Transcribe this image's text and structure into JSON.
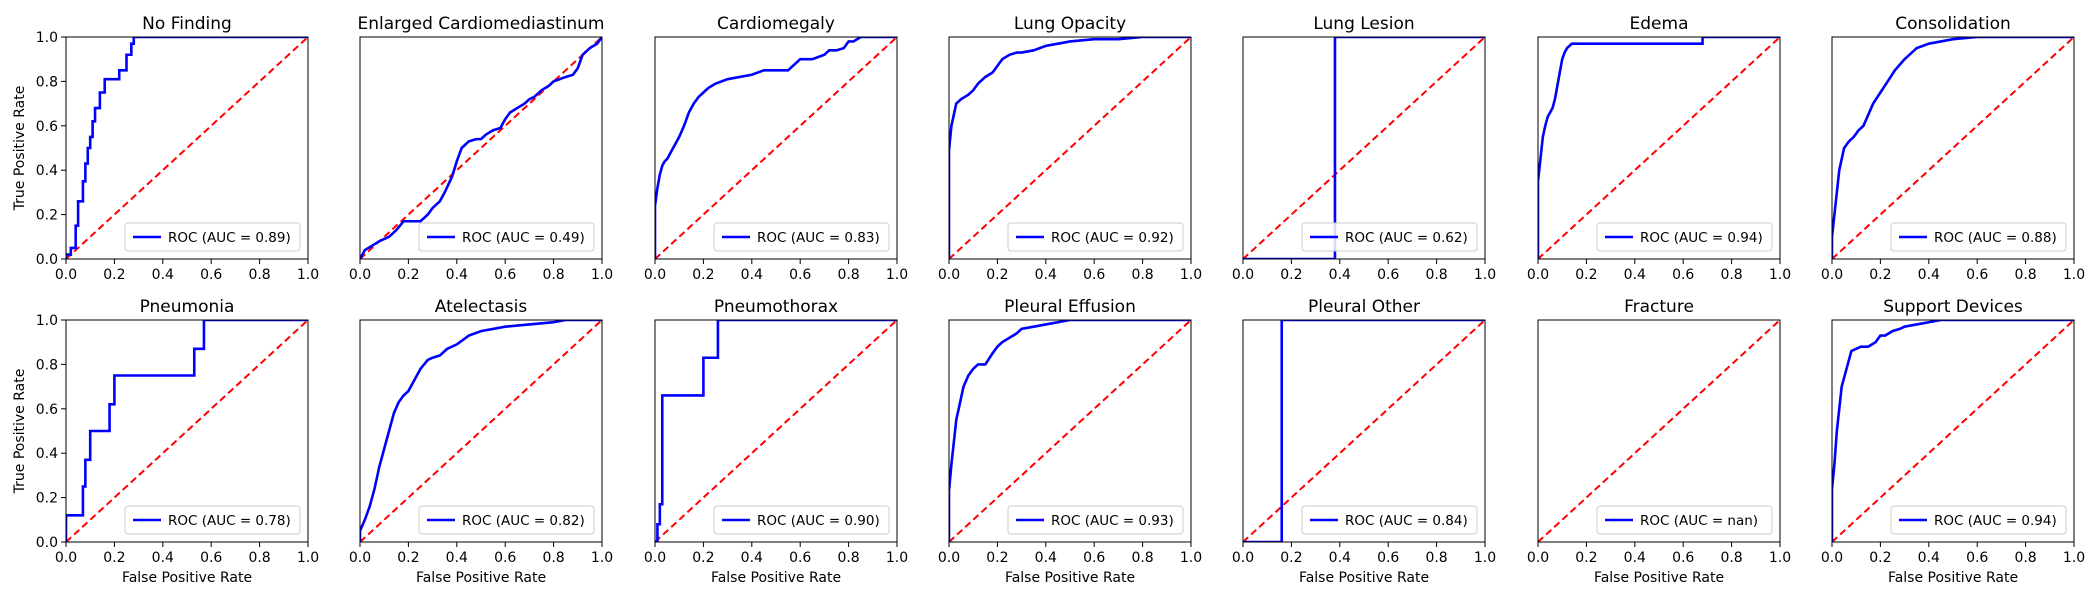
{
  "figure": {
    "xlabel": "False Positive Rate",
    "ylabel": "True Positive Rate",
    "tick_labels": [
      "0.0",
      "0.2",
      "0.4",
      "0.6",
      "0.8",
      "1.0"
    ],
    "roc_color": "#0000ff",
    "diagonal_color": "#ff0000"
  },
  "chart_data": [
    {
      "type": "line",
      "title": "No Finding",
      "legend": "ROC (AUC = 0.89)",
      "xlim": [
        0,
        1
      ],
      "ylim": [
        0,
        1
      ],
      "series": [
        {
          "name": "ROC (AUC = 0.89)",
          "x": [
            0,
            0,
            0.02,
            0.02,
            0.04,
            0.04,
            0.05,
            0.05,
            0.07,
            0.07,
            0.08,
            0.08,
            0.09,
            0.09,
            0.1,
            0.1,
            0.11,
            0.11,
            0.12,
            0.12,
            0.14,
            0.14,
            0.16,
            0.16,
            0.22,
            0.22,
            0.25,
            0.25,
            0.27,
            0.27,
            0.28,
            0.28,
            1
          ],
          "y": [
            0,
            0.02,
            0.02,
            0.05,
            0.05,
            0.15,
            0.15,
            0.26,
            0.26,
            0.35,
            0.35,
            0.43,
            0.43,
            0.5,
            0.5,
            0.55,
            0.55,
            0.62,
            0.62,
            0.68,
            0.68,
            0.75,
            0.75,
            0.81,
            0.81,
            0.85,
            0.85,
            0.92,
            0.92,
            0.97,
            0.97,
            1,
            1
          ]
        },
        {
          "name": "chance",
          "x": [
            0,
            1
          ],
          "y": [
            0,
            1
          ]
        }
      ]
    },
    {
      "type": "line",
      "title": "Enlarged Cardiomediastinum",
      "legend": "ROC (AUC = 0.49)",
      "xlim": [
        0,
        1
      ],
      "ylim": [
        0,
        1
      ],
      "series": [
        {
          "name": "ROC (AUC = 0.49)",
          "x": [
            0,
            0.02,
            0.05,
            0.08,
            0.12,
            0.15,
            0.18,
            0.2,
            0.25,
            0.28,
            0.3,
            0.33,
            0.35,
            0.38,
            0.4,
            0.42,
            0.45,
            0.48,
            0.5,
            0.52,
            0.55,
            0.58,
            0.6,
            0.62,
            0.65,
            0.68,
            0.7,
            0.72,
            0.75,
            0.78,
            0.8,
            0.85,
            0.88,
            0.9,
            0.92,
            0.95,
            0.98,
            1
          ],
          "y": [
            0,
            0.04,
            0.06,
            0.08,
            0.1,
            0.13,
            0.17,
            0.17,
            0.17,
            0.2,
            0.23,
            0.26,
            0.3,
            0.37,
            0.44,
            0.5,
            0.53,
            0.54,
            0.54,
            0.56,
            0.58,
            0.59,
            0.63,
            0.66,
            0.68,
            0.7,
            0.72,
            0.73,
            0.76,
            0.78,
            0.8,
            0.82,
            0.83,
            0.86,
            0.92,
            0.95,
            0.97,
            1
          ]
        },
        {
          "name": "chance",
          "x": [
            0,
            1
          ],
          "y": [
            0,
            1
          ]
        }
      ]
    },
    {
      "type": "line",
      "title": "Cardiomegaly",
      "legend": "ROC (AUC = 0.83)",
      "xlim": [
        0,
        1
      ],
      "ylim": [
        0,
        1
      ],
      "series": [
        {
          "name": "ROC (AUC = 0.83)",
          "x": [
            0,
            0,
            0.01,
            0.02,
            0.03,
            0.04,
            0.05,
            0.06,
            0.08,
            0.1,
            0.12,
            0.14,
            0.16,
            0.18,
            0.2,
            0.22,
            0.25,
            0.3,
            0.35,
            0.4,
            0.45,
            0.5,
            0.55,
            0.6,
            0.65,
            0.7,
            0.72,
            0.75,
            0.78,
            0.8,
            0.82,
            0.85,
            0.9,
            0.95,
            1
          ],
          "y": [
            0,
            0.24,
            0.32,
            0.38,
            0.42,
            0.44,
            0.45,
            0.47,
            0.51,
            0.55,
            0.6,
            0.66,
            0.7,
            0.73,
            0.75,
            0.77,
            0.79,
            0.81,
            0.82,
            0.83,
            0.85,
            0.85,
            0.85,
            0.9,
            0.9,
            0.92,
            0.94,
            0.94,
            0.95,
            0.98,
            0.98,
            1,
            1,
            1,
            1
          ]
        },
        {
          "name": "chance",
          "x": [
            0,
            1
          ],
          "y": [
            0,
            1
          ]
        }
      ]
    },
    {
      "type": "line",
      "title": "Lung Opacity",
      "legend": "ROC (AUC = 0.92)",
      "xlim": [
        0,
        1
      ],
      "ylim": [
        0,
        1
      ],
      "series": [
        {
          "name": "ROC (AUC = 0.92)",
          "x": [
            0,
            0,
            0.01,
            0.02,
            0.03,
            0.05,
            0.08,
            0.1,
            0.12,
            0.15,
            0.18,
            0.2,
            0.22,
            0.25,
            0.28,
            0.3,
            0.35,
            0.4,
            0.45,
            0.5,
            0.6,
            0.7,
            0.8,
            0.9,
            1
          ],
          "y": [
            0,
            0.49,
            0.6,
            0.65,
            0.7,
            0.72,
            0.74,
            0.76,
            0.79,
            0.82,
            0.84,
            0.87,
            0.9,
            0.92,
            0.93,
            0.93,
            0.94,
            0.96,
            0.97,
            0.98,
            0.99,
            0.99,
            1,
            1,
            1
          ]
        },
        {
          "name": "chance",
          "x": [
            0,
            1
          ],
          "y": [
            0,
            1
          ]
        }
      ]
    },
    {
      "type": "line",
      "title": "Lung Lesion",
      "legend": "ROC (AUC = 0.62)",
      "xlim": [
        0,
        1
      ],
      "ylim": [
        0,
        1
      ],
      "series": [
        {
          "name": "ROC (AUC = 0.62)",
          "x": [
            0,
            0.38,
            0.38,
            1
          ],
          "y": [
            0,
            0,
            1,
            1
          ]
        },
        {
          "name": "chance",
          "x": [
            0,
            1
          ],
          "y": [
            0,
            1
          ]
        }
      ]
    },
    {
      "type": "line",
      "title": "Edema",
      "legend": "ROC (AUC = 0.94)",
      "xlim": [
        0,
        1
      ],
      "ylim": [
        0,
        1
      ],
      "series": [
        {
          "name": "ROC (AUC = 0.94)",
          "x": [
            0,
            0,
            0.01,
            0.02,
            0.03,
            0.04,
            0.05,
            0.06,
            0.07,
            0.08,
            0.09,
            0.1,
            0.11,
            0.12,
            0.14,
            0.2,
            0.3,
            0.4,
            0.5,
            0.6,
            0.68,
            0.68,
            1
          ],
          "y": [
            0,
            0.35,
            0.45,
            0.55,
            0.6,
            0.64,
            0.66,
            0.68,
            0.72,
            0.78,
            0.84,
            0.9,
            0.93,
            0.95,
            0.97,
            0.97,
            0.97,
            0.97,
            0.97,
            0.97,
            0.97,
            1,
            1
          ]
        },
        {
          "name": "chance",
          "x": [
            0,
            1
          ],
          "y": [
            0,
            1
          ]
        }
      ]
    },
    {
      "type": "line",
      "title": "Consolidation",
      "legend": "ROC (AUC = 0.88)",
      "xlim": [
        0,
        1
      ],
      "ylim": [
        0,
        1
      ],
      "series": [
        {
          "name": "ROC (AUC = 0.88)",
          "x": [
            0,
            0,
            0.01,
            0.02,
            0.03,
            0.04,
            0.05,
            0.07,
            0.09,
            0.11,
            0.13,
            0.15,
            0.17,
            0.2,
            0.23,
            0.26,
            0.3,
            0.35,
            0.4,
            0.5,
            0.6,
            0.7,
            1
          ],
          "y": [
            0,
            0.1,
            0.2,
            0.3,
            0.4,
            0.45,
            0.5,
            0.53,
            0.55,
            0.58,
            0.6,
            0.65,
            0.7,
            0.75,
            0.8,
            0.85,
            0.9,
            0.95,
            0.97,
            0.99,
            1,
            1,
            1
          ]
        },
        {
          "name": "chance",
          "x": [
            0,
            1
          ],
          "y": [
            0,
            1
          ]
        }
      ]
    },
    {
      "type": "line",
      "title": "Pneumonia",
      "legend": "ROC (AUC = 0.78)",
      "xlim": [
        0,
        1
      ],
      "ylim": [
        0,
        1
      ],
      "series": [
        {
          "name": "ROC (AUC = 0.78)",
          "x": [
            0,
            0,
            0.02,
            0.02,
            0.07,
            0.07,
            0.08,
            0.08,
            0.1,
            0.1,
            0.18,
            0.18,
            0.2,
            0.2,
            0.53,
            0.53,
            0.57,
            0.57,
            1
          ],
          "y": [
            0,
            0.12,
            0.12,
            0.12,
            0.12,
            0.25,
            0.25,
            0.37,
            0.37,
            0.5,
            0.5,
            0.62,
            0.62,
            0.75,
            0.75,
            0.87,
            0.87,
            1,
            1
          ]
        },
        {
          "name": "chance",
          "x": [
            0,
            1
          ],
          "y": [
            0,
            1
          ]
        }
      ]
    },
    {
      "type": "line",
      "title": "Atelectasis",
      "legend": "ROC (AUC = 0.82)",
      "xlim": [
        0,
        1
      ],
      "ylim": [
        0,
        1
      ],
      "series": [
        {
          "name": "ROC (AUC = 0.82)",
          "x": [
            0,
            0,
            0.02,
            0.04,
            0.06,
            0.08,
            0.1,
            0.12,
            0.14,
            0.16,
            0.18,
            0.2,
            0.22,
            0.25,
            0.28,
            0.3,
            0.33,
            0.36,
            0.4,
            0.45,
            0.5,
            0.6,
            0.7,
            0.8,
            0.85,
            0.9,
            1
          ],
          "y": [
            0,
            0.05,
            0.1,
            0.16,
            0.24,
            0.34,
            0.42,
            0.5,
            0.58,
            0.63,
            0.66,
            0.68,
            0.72,
            0.78,
            0.82,
            0.83,
            0.84,
            0.87,
            0.89,
            0.93,
            0.95,
            0.97,
            0.98,
            0.99,
            1,
            1,
            1
          ]
        },
        {
          "name": "chance",
          "x": [
            0,
            1
          ],
          "y": [
            0,
            1
          ]
        }
      ]
    },
    {
      "type": "line",
      "title": "Pneumothorax",
      "legend": "ROC (AUC = 0.90)",
      "xlim": [
        0,
        1
      ],
      "ylim": [
        0,
        1
      ],
      "series": [
        {
          "name": "ROC (AUC = 0.90)",
          "x": [
            0,
            0.01,
            0.01,
            0.02,
            0.02,
            0.03,
            0.03,
            0.2,
            0.2,
            0.26,
            0.26,
            1
          ],
          "y": [
            0,
            0,
            0.08,
            0.08,
            0.17,
            0.17,
            0.66,
            0.66,
            0.83,
            0.83,
            1,
            1
          ]
        },
        {
          "name": "chance",
          "x": [
            0,
            1
          ],
          "y": [
            0,
            1
          ]
        }
      ]
    },
    {
      "type": "line",
      "title": "Pleural Effusion",
      "legend": "ROC (AUC = 0.93)",
      "xlim": [
        0,
        1
      ],
      "ylim": [
        0,
        1
      ],
      "series": [
        {
          "name": "ROC (AUC = 0.93)",
          "x": [
            0,
            0,
            0.01,
            0.02,
            0.03,
            0.04,
            0.05,
            0.06,
            0.08,
            0.1,
            0.12,
            0.15,
            0.18,
            0.2,
            0.22,
            0.25,
            0.28,
            0.3,
            0.35,
            0.4,
            0.45,
            0.5,
            0.6,
            0.7,
            1
          ],
          "y": [
            0,
            0.23,
            0.35,
            0.45,
            0.55,
            0.6,
            0.65,
            0.7,
            0.75,
            0.78,
            0.8,
            0.8,
            0.85,
            0.88,
            0.9,
            0.92,
            0.94,
            0.96,
            0.97,
            0.98,
            0.99,
            1,
            1,
            1,
            1
          ]
        },
        {
          "name": "chance",
          "x": [
            0,
            1
          ],
          "y": [
            0,
            1
          ]
        }
      ]
    },
    {
      "type": "line",
      "title": "Pleural Other",
      "legend": "ROC (AUC = 0.84)",
      "xlim": [
        0,
        1
      ],
      "ylim": [
        0,
        1
      ],
      "series": [
        {
          "name": "ROC (AUC = 0.84)",
          "x": [
            0,
            0.16,
            0.16,
            1
          ],
          "y": [
            0,
            0,
            1,
            1
          ]
        },
        {
          "name": "chance",
          "x": [
            0,
            1
          ],
          "y": [
            0,
            1
          ]
        }
      ]
    },
    {
      "type": "line",
      "title": "Fracture",
      "legend": "ROC (AUC = nan)",
      "xlim": [
        0,
        1
      ],
      "ylim": [
        0,
        1
      ],
      "series": [
        {
          "name": "ROC (AUC = nan)",
          "x": [],
          "y": []
        },
        {
          "name": "chance",
          "x": [
            0,
            1
          ],
          "y": [
            0,
            1
          ]
        }
      ]
    },
    {
      "type": "line",
      "title": "Support Devices",
      "legend": "ROC (AUC = 0.94)",
      "xlim": [
        0,
        1
      ],
      "ylim": [
        0,
        1
      ],
      "series": [
        {
          "name": "ROC (AUC = 0.94)",
          "x": [
            0,
            0,
            0.01,
            0.02,
            0.03,
            0.04,
            0.05,
            0.06,
            0.07,
            0.08,
            0.1,
            0.12,
            0.15,
            0.18,
            0.2,
            0.22,
            0.25,
            0.28,
            0.3,
            0.35,
            0.4,
            0.45,
            0.5,
            0.6,
            1
          ],
          "y": [
            0,
            0.24,
            0.35,
            0.5,
            0.6,
            0.7,
            0.74,
            0.78,
            0.82,
            0.86,
            0.87,
            0.88,
            0.88,
            0.9,
            0.93,
            0.93,
            0.95,
            0.96,
            0.97,
            0.98,
            0.99,
            1,
            1,
            1,
            1
          ]
        },
        {
          "name": "chance",
          "x": [
            0,
            1
          ],
          "y": [
            0,
            1
          ]
        }
      ]
    }
  ]
}
